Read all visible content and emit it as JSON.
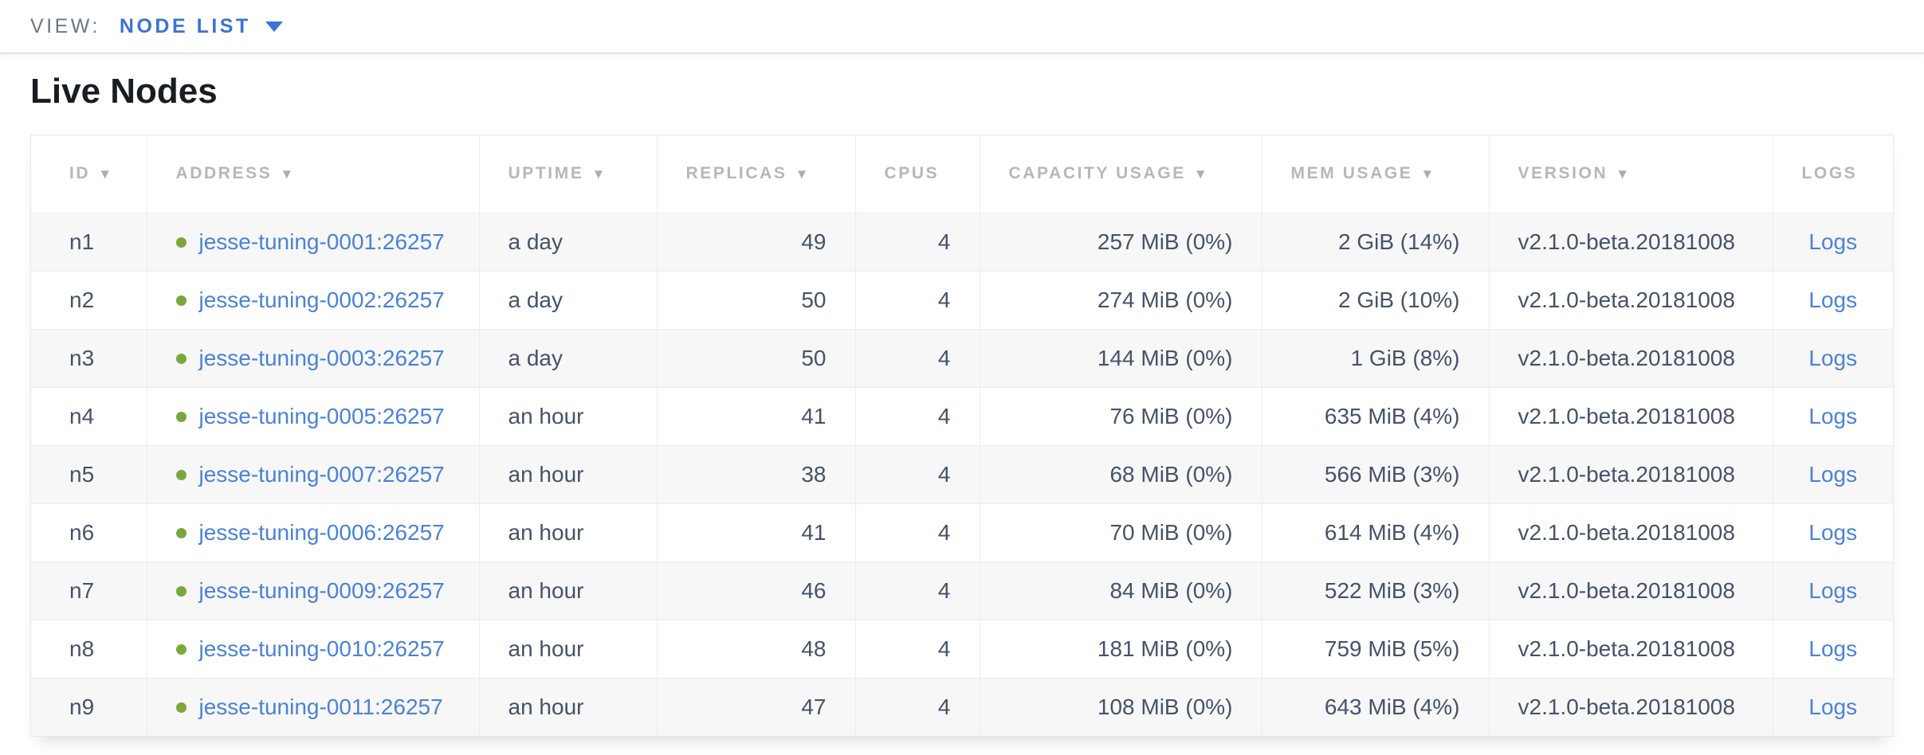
{
  "view_bar": {
    "label": "VIEW:",
    "selected": "NODE LIST"
  },
  "page": {
    "title": "Live Nodes"
  },
  "icons": {
    "sort_desc_icon": "▼",
    "node_status_icon_color": "#7ba63c"
  },
  "colors": {
    "accent_blue": "#3c72d6",
    "link_blue": "#4a82d8",
    "healthy_green": "#7ba63c",
    "header_gray": "#b4b7bd",
    "cell_text": "#46526a",
    "row_stripe": "#f7f7f8",
    "border": "#ededee"
  },
  "table": {
    "columns": [
      {
        "key": "id",
        "label": "ID",
        "sortable": true,
        "align": "left",
        "type": "text"
      },
      {
        "key": "address",
        "label": "ADDRESS",
        "sortable": true,
        "align": "left",
        "type": "address"
      },
      {
        "key": "uptime",
        "label": "UPTIME",
        "sortable": true,
        "align": "left",
        "type": "text"
      },
      {
        "key": "replicas",
        "label": "REPLICAS",
        "sortable": true,
        "align": "right",
        "type": "text"
      },
      {
        "key": "cpus",
        "label": "CPUS",
        "sortable": false,
        "align": "right",
        "type": "text"
      },
      {
        "key": "capacity_usage",
        "label": "CAPACITY USAGE",
        "sortable": true,
        "align": "right",
        "type": "text"
      },
      {
        "key": "mem_usage",
        "label": "MEM USAGE",
        "sortable": true,
        "align": "right",
        "type": "text"
      },
      {
        "key": "version",
        "label": "VERSION",
        "sortable": true,
        "align": "left",
        "type": "text"
      },
      {
        "key": "logs",
        "label": "LOGS",
        "sortable": false,
        "align": "center",
        "type": "link"
      }
    ],
    "rows": [
      {
        "id": "n1",
        "address": "jesse-tuning-0001:26257",
        "status": "healthy",
        "uptime": "a day",
        "replicas": "49",
        "cpus": "4",
        "capacity_usage": "257 MiB (0%)",
        "mem_usage": "2 GiB (14%)",
        "version": "v2.1.0-beta.20181008",
        "logs": "Logs"
      },
      {
        "id": "n2",
        "address": "jesse-tuning-0002:26257",
        "status": "healthy",
        "uptime": "a day",
        "replicas": "50",
        "cpus": "4",
        "capacity_usage": "274 MiB (0%)",
        "mem_usage": "2 GiB (10%)",
        "version": "v2.1.0-beta.20181008",
        "logs": "Logs"
      },
      {
        "id": "n3",
        "address": "jesse-tuning-0003:26257",
        "status": "healthy",
        "uptime": "a day",
        "replicas": "50",
        "cpus": "4",
        "capacity_usage": "144 MiB (0%)",
        "mem_usage": "1 GiB (8%)",
        "version": "v2.1.0-beta.20181008",
        "logs": "Logs"
      },
      {
        "id": "n4",
        "address": "jesse-tuning-0005:26257",
        "status": "healthy",
        "uptime": "an hour",
        "replicas": "41",
        "cpus": "4",
        "capacity_usage": "76 MiB (0%)",
        "mem_usage": "635 MiB (4%)",
        "version": "v2.1.0-beta.20181008",
        "logs": "Logs"
      },
      {
        "id": "n5",
        "address": "jesse-tuning-0007:26257",
        "status": "healthy",
        "uptime": "an hour",
        "replicas": "38",
        "cpus": "4",
        "capacity_usage": "68 MiB (0%)",
        "mem_usage": "566 MiB (3%)",
        "version": "v2.1.0-beta.20181008",
        "logs": "Logs"
      },
      {
        "id": "n6",
        "address": "jesse-tuning-0006:26257",
        "status": "healthy",
        "uptime": "an hour",
        "replicas": "41",
        "cpus": "4",
        "capacity_usage": "70 MiB (0%)",
        "mem_usage": "614 MiB (4%)",
        "version": "v2.1.0-beta.20181008",
        "logs": "Logs"
      },
      {
        "id": "n7",
        "address": "jesse-tuning-0009:26257",
        "status": "healthy",
        "uptime": "an hour",
        "replicas": "46",
        "cpus": "4",
        "capacity_usage": "84 MiB (0%)",
        "mem_usage": "522 MiB (3%)",
        "version": "v2.1.0-beta.20181008",
        "logs": "Logs"
      },
      {
        "id": "n8",
        "address": "jesse-tuning-0010:26257",
        "status": "healthy",
        "uptime": "an hour",
        "replicas": "48",
        "cpus": "4",
        "capacity_usage": "181 MiB (0%)",
        "mem_usage": "759 MiB (5%)",
        "version": "v2.1.0-beta.20181008",
        "logs": "Logs"
      },
      {
        "id": "n9",
        "address": "jesse-tuning-0011:26257",
        "status": "healthy",
        "uptime": "an hour",
        "replicas": "47",
        "cpus": "4",
        "capacity_usage": "108 MiB (0%)",
        "mem_usage": "643 MiB (4%)",
        "version": "v2.1.0-beta.20181008",
        "logs": "Logs"
      }
    ]
  }
}
